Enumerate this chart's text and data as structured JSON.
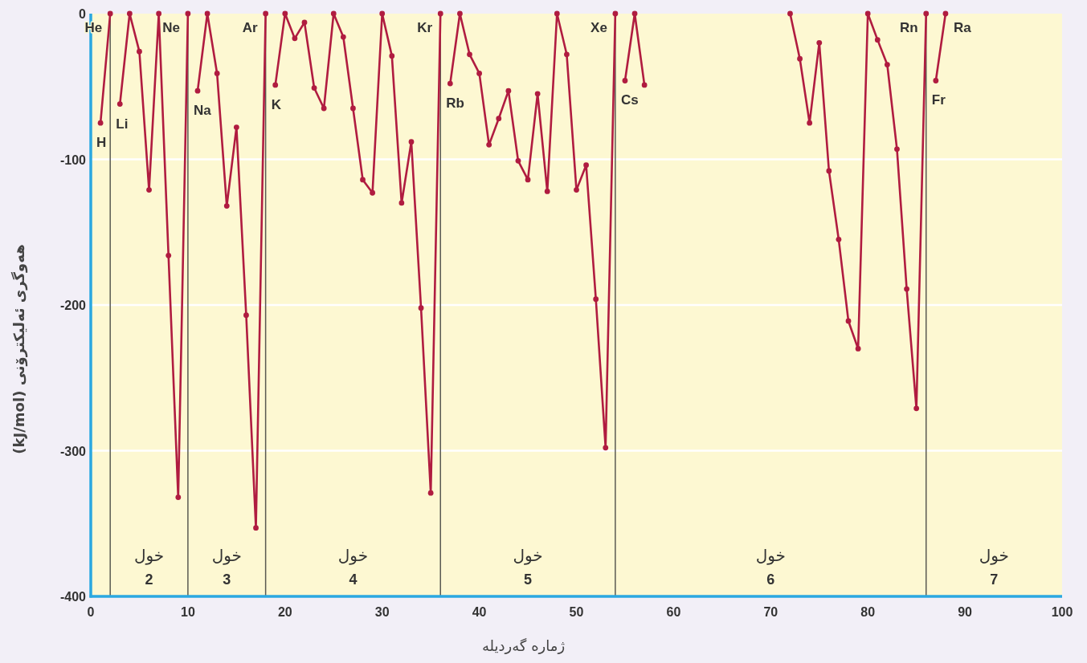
{
  "chart_data": {
    "type": "line",
    "xlabel": "ژمارە گەردیلە",
    "ylabel": "هەوگری ئەلیکترۆنی (kJ/mol)",
    "xlim": [
      0,
      100
    ],
    "ylim": [
      -400,
      0
    ],
    "xticks": [
      0,
      10,
      20,
      30,
      40,
      50,
      60,
      70,
      80,
      90,
      100
    ],
    "yticks": [
      -400,
      -300,
      -200,
      -100,
      0
    ],
    "grid": "y",
    "marker": "circle",
    "line_style": "solid",
    "series": [
      {
        "color": "#b01c40",
        "x": [
          1,
          2
        ],
        "values": [
          -75,
          0
        ]
      },
      {
        "color": "#b01c40",
        "x": [
          3,
          4,
          5,
          6,
          7,
          8,
          9,
          10
        ],
        "values": [
          -62,
          0,
          -26,
          -121,
          0,
          -166,
          -332,
          0
        ]
      },
      {
        "color": "#b01c40",
        "x": [
          11,
          12,
          13,
          14,
          15,
          16,
          17,
          18
        ],
        "values": [
          -53,
          0,
          -41,
          -132,
          -78,
          -207,
          -353,
          0
        ]
      },
      {
        "color": "#b01c40",
        "x": [
          19,
          20,
          21,
          22,
          23,
          24,
          25,
          26,
          27,
          28,
          29,
          30,
          31,
          32,
          33,
          34,
          35,
          36
        ],
        "values": [
          -49,
          0,
          -17,
          -6,
          -51,
          -65,
          0,
          -16,
          -65,
          -114,
          -123,
          0,
          -29,
          -130,
          -88,
          -202,
          -329,
          0
        ]
      },
      {
        "color": "#b01c40",
        "x": [
          37,
          38,
          39,
          40,
          41,
          42,
          43,
          44,
          45,
          46,
          47,
          48,
          49,
          50,
          51,
          52,
          53,
          54
        ],
        "values": [
          -48,
          0,
          -28,
          -41,
          -90,
          -72,
          -53,
          -101,
          -114,
          -55,
          -122,
          0,
          -28,
          -121,
          -104,
          -196,
          -298,
          0
        ]
      },
      {
        "color": "#b01c40",
        "x": [
          55,
          56,
          57
        ],
        "values": [
          -46,
          0,
          -49
        ]
      },
      {
        "color": "#b01c40",
        "x": [
          72,
          73,
          74,
          75,
          76,
          77,
          78,
          79,
          80,
          81,
          82,
          83,
          84,
          85,
          86
        ],
        "values": [
          0,
          -31,
          -75,
          -20,
          -108,
          -155,
          -211,
          -230,
          0,
          -18,
          -35,
          -93,
          -189,
          -271,
          0
        ]
      },
      {
        "color": "#b01c40",
        "x": [
          87,
          88
        ],
        "values": [
          -46,
          0
        ]
      }
    ],
    "ref_lines": [
      {
        "axis": "x",
        "value": 2,
        "color": "#5a5a52"
      },
      {
        "axis": "x",
        "value": 10,
        "color": "#5a5a52"
      },
      {
        "axis": "x",
        "value": 18,
        "color": "#5a5a52"
      },
      {
        "axis": "x",
        "value": 36,
        "color": "#5a5a52"
      },
      {
        "axis": "x",
        "value": 54,
        "color": "#5a5a52"
      },
      {
        "axis": "x",
        "value": 86,
        "color": "#5a5a52"
      }
    ],
    "annotations": [
      {
        "text": "H",
        "x": 1,
        "y": -75
      },
      {
        "text": "He",
        "x": 2,
        "y": 0
      },
      {
        "text": "Li",
        "x": 3,
        "y": -62
      },
      {
        "text": "Ne",
        "x": 10,
        "y": 0
      },
      {
        "text": "Na",
        "x": 11,
        "y": -53
      },
      {
        "text": "Ar",
        "x": 18,
        "y": 0
      },
      {
        "text": "K",
        "x": 19,
        "y": -49
      },
      {
        "text": "Kr",
        "x": 36,
        "y": 0
      },
      {
        "text": "Rb",
        "x": 37,
        "y": -48
      },
      {
        "text": "Xe",
        "x": 54,
        "y": 0
      },
      {
        "text": "Cs",
        "x": 55,
        "y": -46
      },
      {
        "text": "Rn",
        "x": 86,
        "y": 0
      },
      {
        "text": "Fr",
        "x": 87,
        "y": -46
      },
      {
        "text": "Ra",
        "x": 88,
        "y": 0
      },
      "خول 2",
      "خول 3",
      "خول 4",
      "خول 5",
      "خول 6",
      "خول 7"
    ]
  }
}
